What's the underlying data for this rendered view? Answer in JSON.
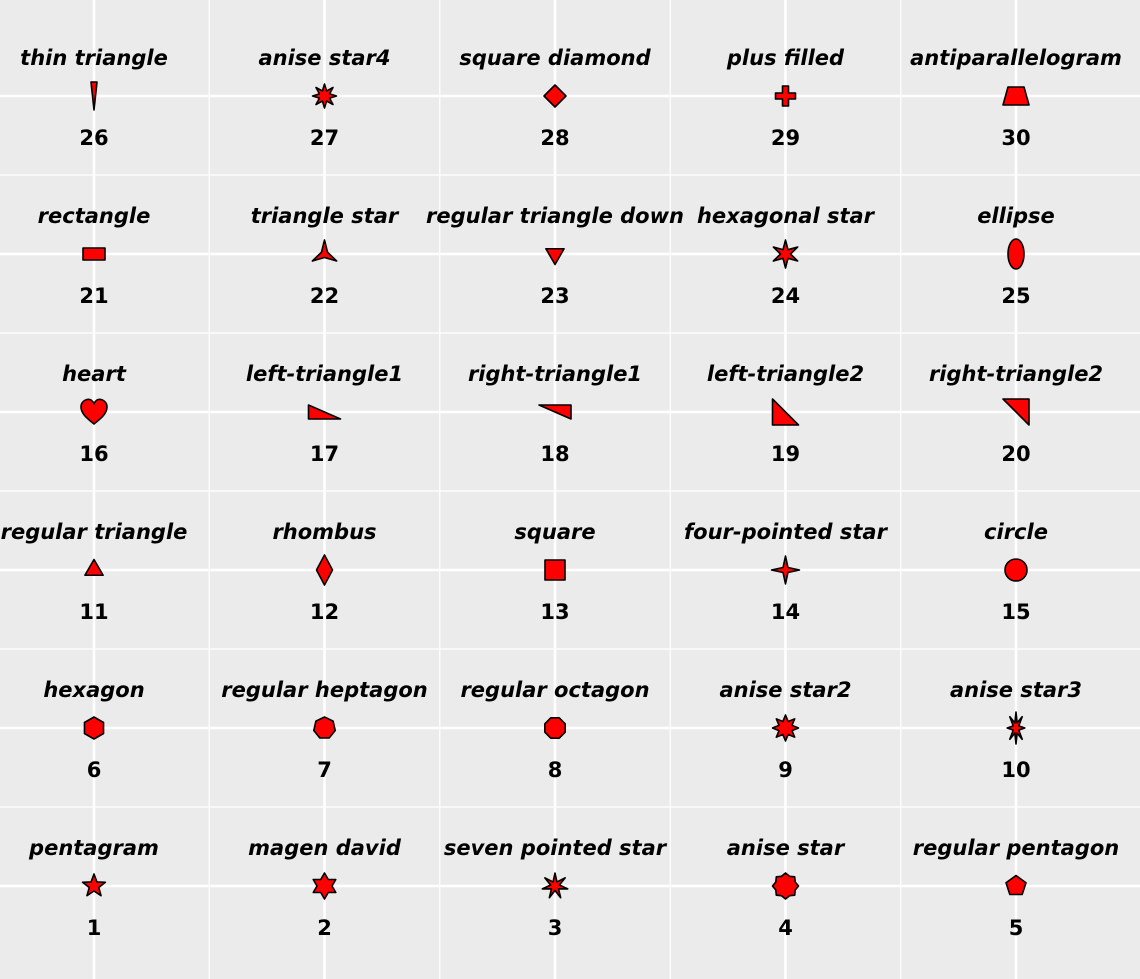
{
  "chart_data": {
    "type": "scatter",
    "grid": true,
    "marker_fill": "#ff0000",
    "marker_stroke": "#000000",
    "panel_background": "#ebebeb",
    "gridline_color": "#ffffff",
    "xlim": [
      0.5,
      5.5
    ],
    "ylim": [
      0.5,
      6.5
    ],
    "points": [
      {
        "x": 1,
        "y": 6,
        "shape": "26",
        "name": "thin triangle",
        "marker": "thin-triangle"
      },
      {
        "x": 2,
        "y": 6,
        "shape": "27",
        "name": "anise star4",
        "marker": "anise-star4"
      },
      {
        "x": 3,
        "y": 6,
        "shape": "28",
        "name": "square diamond",
        "marker": "square-diamond"
      },
      {
        "x": 4,
        "y": 6,
        "shape": "29",
        "name": "plus filled",
        "marker": "plus-filled"
      },
      {
        "x": 5,
        "y": 6,
        "shape": "30",
        "name": "antiparallelogram",
        "marker": "antiparallelogram"
      },
      {
        "x": 1,
        "y": 5,
        "shape": "21",
        "name": "rectangle",
        "marker": "rectangle"
      },
      {
        "x": 2,
        "y": 5,
        "shape": "22",
        "name": "triangle star",
        "marker": "triangle-star"
      },
      {
        "x": 3,
        "y": 5,
        "shape": "23",
        "name": "regular triangle down",
        "marker": "triangle-down"
      },
      {
        "x": 4,
        "y": 5,
        "shape": "24",
        "name": "hexagonal star",
        "marker": "hexagonal-star"
      },
      {
        "x": 5,
        "y": 5,
        "shape": "25",
        "name": "ellipse",
        "marker": "ellipse"
      },
      {
        "x": 1,
        "y": 4,
        "shape": "16",
        "name": "heart",
        "marker": "heart"
      },
      {
        "x": 2,
        "y": 4,
        "shape": "17",
        "name": "left-triangle1",
        "marker": "left-triangle1"
      },
      {
        "x": 3,
        "y": 4,
        "shape": "18",
        "name": "right-triangle1",
        "marker": "right-triangle1"
      },
      {
        "x": 4,
        "y": 4,
        "shape": "19",
        "name": "left-triangle2",
        "marker": "left-triangle2"
      },
      {
        "x": 5,
        "y": 4,
        "shape": "20",
        "name": "right-triangle2",
        "marker": "right-triangle2"
      },
      {
        "x": 1,
        "y": 3,
        "shape": "11",
        "name": "regular triangle",
        "marker": "triangle-up"
      },
      {
        "x": 2,
        "y": 3,
        "shape": "12",
        "name": "rhombus",
        "marker": "rhombus"
      },
      {
        "x": 3,
        "y": 3,
        "shape": "13",
        "name": "square",
        "marker": "square"
      },
      {
        "x": 4,
        "y": 3,
        "shape": "14",
        "name": "four-pointed star",
        "marker": "four-pointed-star"
      },
      {
        "x": 5,
        "y": 3,
        "shape": "15",
        "name": "circle",
        "marker": "circle"
      },
      {
        "x": 1,
        "y": 2,
        "shape": "6",
        "name": "hexagon",
        "marker": "hexagon"
      },
      {
        "x": 2,
        "y": 2,
        "shape": "7",
        "name": "regular heptagon",
        "marker": "heptagon"
      },
      {
        "x": 3,
        "y": 2,
        "shape": "8",
        "name": "regular octagon",
        "marker": "octagon"
      },
      {
        "x": 4,
        "y": 2,
        "shape": "9",
        "name": "anise star2",
        "marker": "anise-star2"
      },
      {
        "x": 5,
        "y": 2,
        "shape": "10",
        "name": "anise star3",
        "marker": "anise-star3"
      },
      {
        "x": 1,
        "y": 1,
        "shape": "1",
        "name": "pentagram",
        "marker": "pentagram"
      },
      {
        "x": 2,
        "y": 1,
        "shape": "2",
        "name": "magen david",
        "marker": "magen-david"
      },
      {
        "x": 3,
        "y": 1,
        "shape": "3",
        "name": "seven pointed star",
        "marker": "seven-pointed-star"
      },
      {
        "x": 4,
        "y": 1,
        "shape": "4",
        "name": "anise star",
        "marker": "anise-star"
      },
      {
        "x": 5,
        "y": 1,
        "shape": "5",
        "name": "regular pentagon",
        "marker": "pentagon"
      }
    ]
  }
}
